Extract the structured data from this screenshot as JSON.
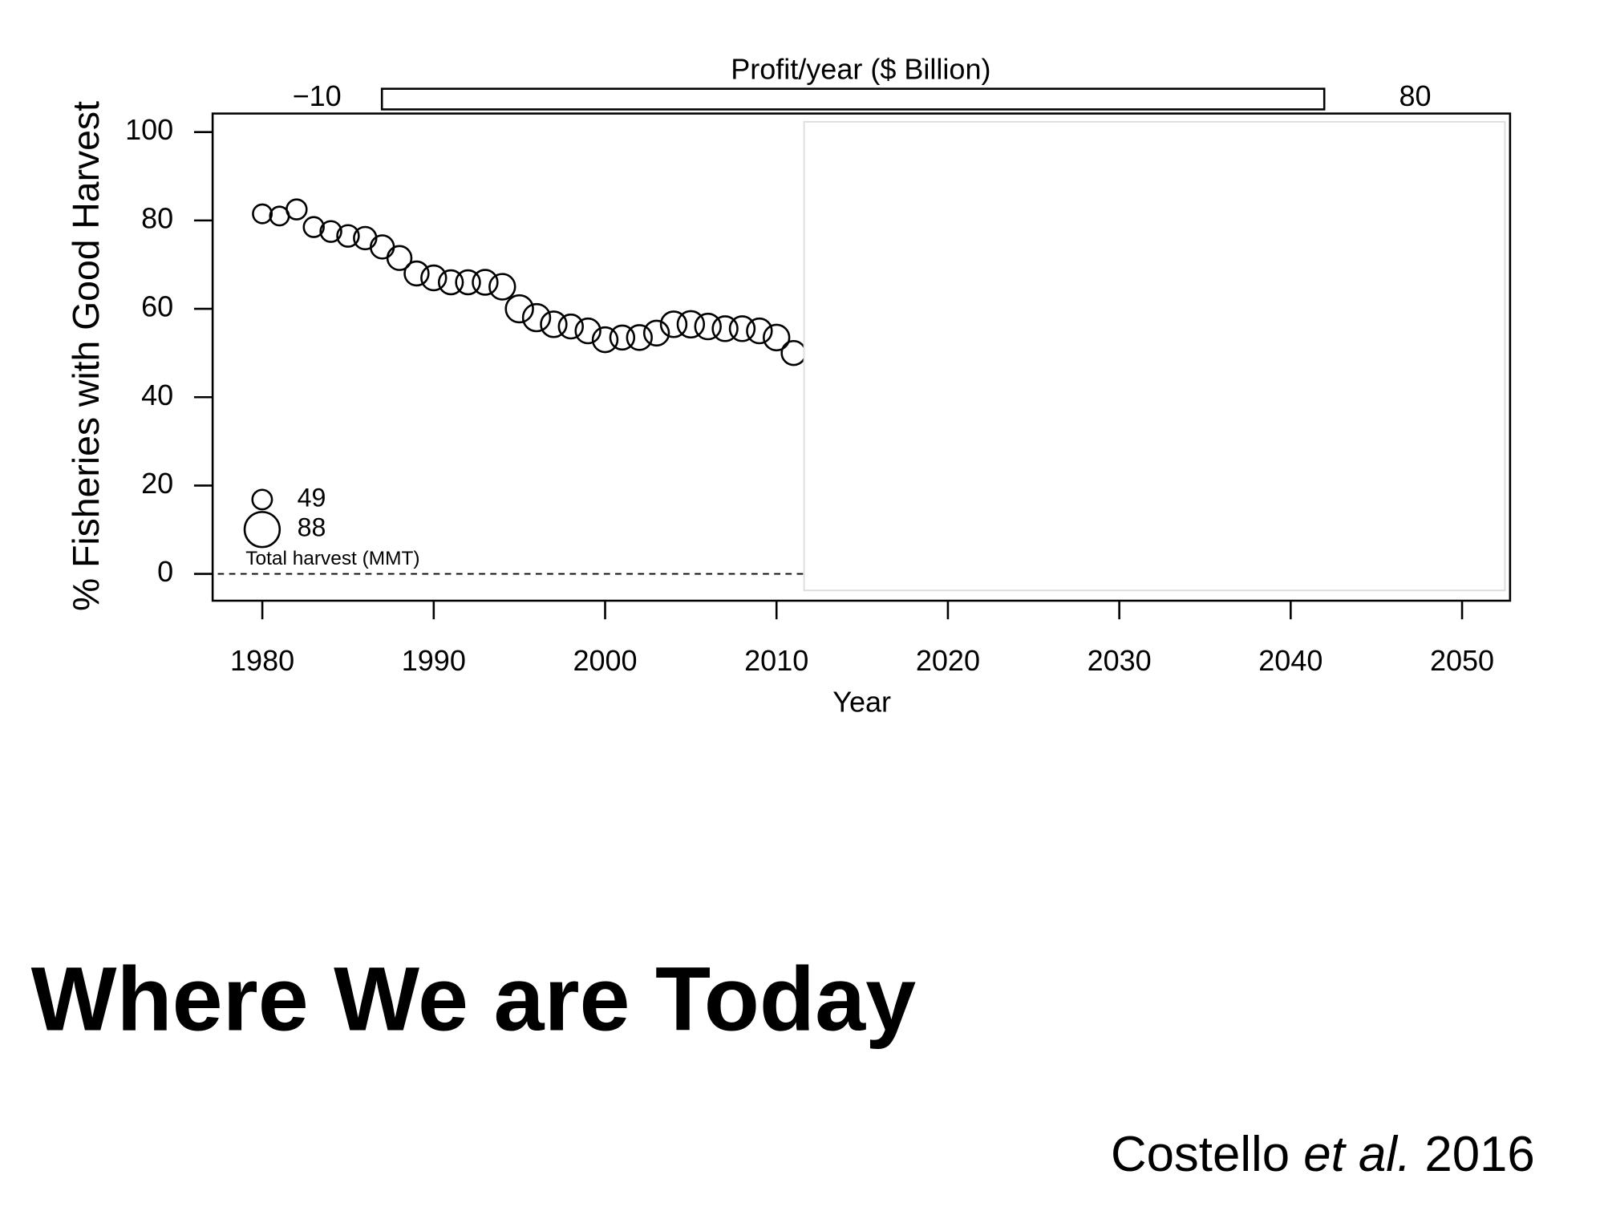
{
  "chart_data": {
    "type": "bubble",
    "title": "Where We are Today",
    "citation": [
      "Costello ",
      "et al.",
      " 2016"
    ],
    "xlabel": "Year",
    "ylabel": "% Fisheries with Good Harvest",
    "x": [
      1980,
      1981,
      1982,
      1983,
      1984,
      1985,
      1986,
      1987,
      1988,
      1989,
      1990,
      1991,
      1992,
      1993,
      1994,
      1995,
      1996,
      1997,
      1998,
      1999,
      2000,
      2001,
      2002,
      2003,
      2004,
      2005,
      2006,
      2007,
      2008,
      2009,
      2010,
      2011
    ],
    "values": [
      81.5,
      81,
      82.5,
      78.5,
      77.5,
      76.5,
      76,
      74,
      71.5,
      68,
      67,
      66,
      66,
      66,
      65,
      60,
      58,
      56.5,
      56,
      55,
      53,
      53.5,
      53.5,
      54.5,
      56.5,
      56.5,
      56,
      55.5,
      55.5,
      55,
      53.5,
      50
    ],
    "sizes": [
      47,
      47,
      50,
      50,
      52,
      54,
      56,
      58,
      60,
      60,
      62,
      60,
      60,
      62,
      64,
      68,
      68,
      64,
      60,
      62,
      62,
      60,
      62,
      62,
      64,
      66,
      64,
      62,
      62,
      62,
      64,
      60
    ],
    "size_label": "Total harvest (MMT)",
    "size_legend": [
      49,
      88
    ],
    "color": "#000000",
    "xlim": [
      1977.1,
      2052.8
    ],
    "xticks": [
      1980,
      1990,
      2000,
      2010,
      2020,
      2030,
      2040,
      2050
    ],
    "ylim": [
      -6.07,
      104.2
    ],
    "yticks": [
      0,
      20,
      40,
      60,
      80,
      100
    ],
    "hline": 0,
    "profit_scale": {
      "label": "Profit/year ($ Billion)",
      "ticks": [
        {
          "value": -10,
          "label": "−10"
        },
        80
      ]
    }
  }
}
